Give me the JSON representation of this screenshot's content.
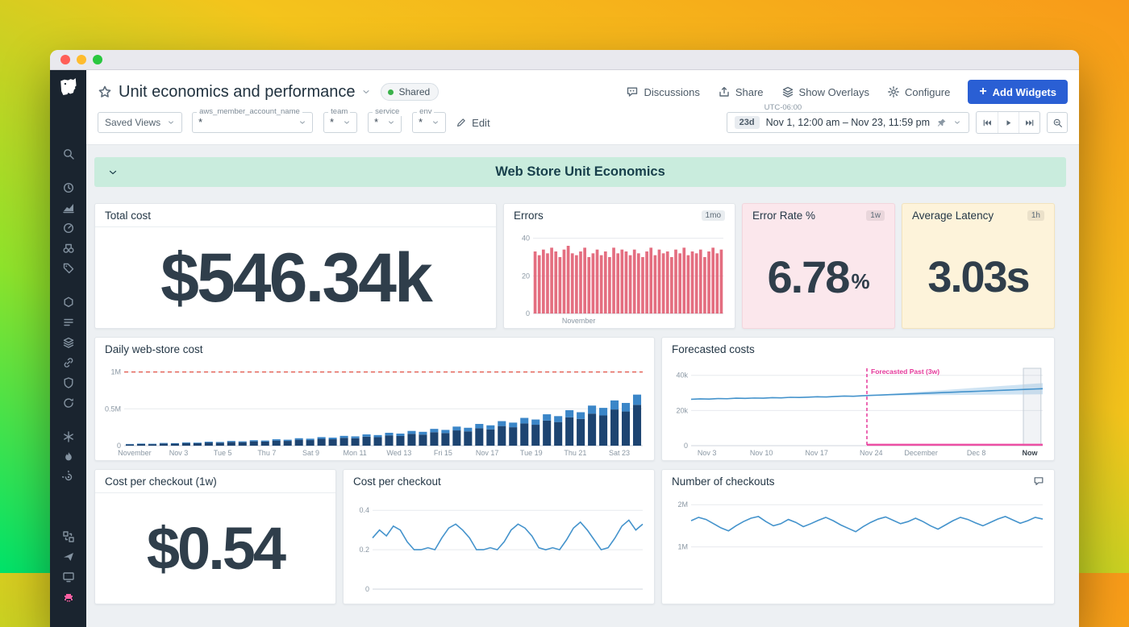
{
  "header": {
    "title": "Unit economics and performance",
    "shared": "Shared",
    "discussions": "Discussions",
    "share": "Share",
    "overlays": "Show Overlays",
    "configure": "Configure",
    "add_widgets": "Add Widgets"
  },
  "toolbar": {
    "saved_views": "Saved Views",
    "variables": [
      {
        "label": "aws_member_account_name",
        "value": "*"
      },
      {
        "label": "team",
        "value": "*"
      },
      {
        "label": "service",
        "value": "*"
      },
      {
        "label": "env",
        "value": "*"
      }
    ],
    "edit": "Edit",
    "timezone": "UTC-06:00",
    "range_chip": "23d",
    "range": "Nov 1, 12:00 am – Nov 23, 11:59 pm"
  },
  "group": {
    "title": "Web Store Unit Economics"
  },
  "widgets": {
    "total_cost": {
      "title": "Total cost",
      "value": "$546.34k"
    },
    "errors": {
      "title": "Errors",
      "badge": "1mo"
    },
    "error_rate": {
      "title": "Error Rate %",
      "badge": "1w",
      "value": "6.78",
      "unit": "%"
    },
    "latency": {
      "title": "Average Latency",
      "badge": "1h",
      "value": "3.03s"
    },
    "daily_cost": {
      "title": "Daily web-store cost"
    },
    "forecast": {
      "title": "Forecasted costs"
    },
    "cpc_1w": {
      "title": "Cost per checkout (1w)",
      "value": "$0.54"
    },
    "cpc": {
      "title": "Cost per checkout"
    },
    "checkouts": {
      "title": "Number of checkouts"
    }
  },
  "sidebar": {
    "items": [
      {
        "name": "search",
        "icon": "magnifier"
      },
      {
        "gap": 8
      },
      {
        "name": "recent",
        "icon": "clock"
      },
      {
        "name": "metrics",
        "icon": "areachart"
      },
      {
        "name": "dashboards",
        "icon": "gauge"
      },
      {
        "name": "watchdog",
        "icon": "binoc"
      },
      {
        "name": "apm",
        "icon": "tag"
      },
      {
        "gap": 8
      },
      {
        "name": "infrastructure",
        "icon": "hex"
      },
      {
        "name": "logs",
        "icon": "list"
      },
      {
        "name": "ci",
        "icon": "layers"
      },
      {
        "name": "service-map",
        "icon": "link"
      },
      {
        "name": "security",
        "icon": "shield"
      },
      {
        "name": "synthetics",
        "icon": "sync"
      },
      {
        "gap": 8
      },
      {
        "name": "integrations",
        "icon": "burst"
      },
      {
        "name": "serverless",
        "icon": "flame"
      },
      {
        "name": "profiling",
        "icon": "spiral"
      },
      {
        "gap": 40
      },
      {
        "name": "workflows",
        "icon": "blocks"
      },
      {
        "name": "rum",
        "icon": "plane"
      },
      {
        "name": "notebooks",
        "icon": "monitor"
      },
      {
        "name": "bits-ai",
        "icon": "invader",
        "accent": true
      }
    ]
  },
  "chart_data": {
    "errors": {
      "type": "bar",
      "title": "Errors",
      "color": "#e05a6e",
      "ylim": [
        0,
        42
      ],
      "yticks": [
        {
          "v": 0,
          "l": "0"
        },
        {
          "v": 20,
          "l": "20"
        },
        {
          "v": 40,
          "l": "40"
        }
      ],
      "xlabels": [
        {
          "p": 0.24,
          "t": "November"
        }
      ],
      "values": [
        33,
        31,
        34,
        32,
        35,
        33,
        30,
        34,
        36,
        32,
        31,
        33,
        35,
        30,
        32,
        34,
        31,
        33,
        30,
        35,
        32,
        34,
        33,
        31,
        34,
        32,
        30,
        33,
        35,
        31,
        34,
        32,
        33,
        30,
        34,
        32,
        35,
        31,
        33,
        32,
        34,
        30,
        33,
        35,
        32,
        34
      ]
    },
    "daily_cost": {
      "type": "stackbar",
      "title": "Daily web-store cost",
      "unit": "$k",
      "colors": [
        "#1d4471",
        "#3b86c8"
      ],
      "top_fraction": 0.2,
      "ylim": [
        0,
        1050
      ],
      "yticks": [
        {
          "v": 0,
          "l": "0"
        },
        {
          "v": 500,
          "l": "0.5M"
        },
        {
          "v": 1000,
          "l": "1M"
        }
      ],
      "threshold": {
        "v": 1000,
        "color": "#e25c50"
      },
      "xlabels": [
        {
          "p": 0.02,
          "t": "November"
        },
        {
          "p": 0.105,
          "t": "Nov 3"
        },
        {
          "p": 0.19,
          "t": "Tue 5"
        },
        {
          "p": 0.275,
          "t": "Thu 7"
        },
        {
          "p": 0.36,
          "t": "Sat 9"
        },
        {
          "p": 0.445,
          "t": "Mon 11"
        },
        {
          "p": 0.53,
          "t": "Wed 13"
        },
        {
          "p": 0.615,
          "t": "Fri 15"
        },
        {
          "p": 0.7,
          "t": "Nov 17"
        },
        {
          "p": 0.785,
          "t": "Tue 19"
        },
        {
          "p": 0.87,
          "t": "Thu 21"
        },
        {
          "p": 0.955,
          "t": "Sat 23"
        }
      ],
      "values": [
        23,
        29,
        26,
        37,
        34,
        45,
        42,
        54,
        50,
        64,
        59,
        74,
        70,
        87,
        81,
        101,
        95,
        116,
        109,
        133,
        126,
        153,
        144,
        175,
        164,
        200,
        188,
        228,
        214,
        259,
        243,
        295,
        276,
        333,
        313,
        377,
        355,
        426,
        401,
        482,
        454,
        544,
        513,
        614,
        580,
        693
      ]
    },
    "forecast": {
      "type": "line",
      "title": "Forecasted costs",
      "unit": "k",
      "color": "#4493cc",
      "ylim": [
        0,
        44
      ],
      "yticks": [
        {
          "v": 0,
          "l": "0"
        },
        {
          "v": 20,
          "l": "20k"
        },
        {
          "v": 40,
          "l": "40k"
        }
      ],
      "xlabels": [
        {
          "p": 0.045,
          "t": "Nov 3"
        },
        {
          "p": 0.2,
          "t": "Nov 10"
        },
        {
          "p": 0.357,
          "t": "Nov 17"
        },
        {
          "p": 0.512,
          "t": "Nov 24"
        },
        {
          "p": 0.654,
          "t": "December"
        },
        {
          "p": 0.811,
          "t": "Dec 8"
        },
        {
          "p": 0.985,
          "t": "Now",
          "b": 1,
          "a": "end"
        }
      ],
      "values": [
        26.4,
        26.6,
        26.5,
        26.8,
        26.7,
        27.0,
        26.9,
        27.1,
        27.0,
        27.3,
        27.2,
        27.5,
        27.4,
        27.6,
        27.8,
        27.7,
        28.0,
        28.2,
        28.1,
        28.4,
        28.6,
        28.8,
        29.0,
        29.2,
        29.4,
        29.6,
        29.8,
        30.0,
        30.2,
        30.4,
        30.6,
        30.8,
        31.0,
        31.2,
        31.4,
        31.6,
        31.8,
        32.0,
        32.2,
        32.4
      ],
      "forecast": {
        "start": 0.5,
        "spread": 3.2,
        "band_color": "rgba(92,163,216,0.3)"
      },
      "vline": {
        "p": 0.5,
        "color": "#e5399b",
        "label": "Forecasted Past (3w)"
      },
      "strip": {
        "from": 0.5,
        "v": 0.5,
        "color": "#ec4fa3"
      },
      "highlight": {
        "from": 0.945,
        "to": 0.995
      }
    },
    "cpc": {
      "type": "line",
      "title": "Cost per checkout",
      "color": "#4493cc",
      "ylim": [
        0,
        0.45
      ],
      "yticks": [
        {
          "v": 0,
          "l": "0"
        },
        {
          "v": 0.2,
          "l": "0.2"
        },
        {
          "v": 0.4,
          "l": "0.4"
        }
      ],
      "xlabels": [],
      "values": [
        0.26,
        0.3,
        0.27,
        0.32,
        0.3,
        0.24,
        0.2,
        0.2,
        0.21,
        0.2,
        0.26,
        0.31,
        0.33,
        0.3,
        0.26,
        0.2,
        0.2,
        0.21,
        0.2,
        0.24,
        0.3,
        0.33,
        0.31,
        0.27,
        0.21,
        0.2,
        0.21,
        0.2,
        0.25,
        0.31,
        0.34,
        0.3,
        0.25,
        0.2,
        0.21,
        0.26,
        0.32,
        0.35,
        0.3,
        0.33
      ]
    },
    "checkouts": {
      "type": "line",
      "title": "Number of checkouts",
      "unit": "M",
      "color": "#4493cc",
      "ylim": [
        0,
        2.1
      ],
      "yticks": [
        {
          "v": 1,
          "l": "1M"
        },
        {
          "v": 2,
          "l": "2M"
        }
      ],
      "xlabels": [],
      "values": [
        1.62,
        1.7,
        1.65,
        1.55,
        1.45,
        1.38,
        1.5,
        1.6,
        1.68,
        1.72,
        1.6,
        1.5,
        1.55,
        1.65,
        1.58,
        1.48,
        1.55,
        1.63,
        1.7,
        1.62,
        1.52,
        1.44,
        1.36,
        1.48,
        1.58,
        1.66,
        1.71,
        1.63,
        1.55,
        1.6,
        1.68,
        1.6,
        1.5,
        1.42,
        1.52,
        1.62,
        1.7,
        1.65,
        1.57,
        1.5,
        1.58,
        1.66,
        1.72,
        1.64,
        1.56,
        1.62,
        1.7,
        1.66
      ]
    }
  }
}
